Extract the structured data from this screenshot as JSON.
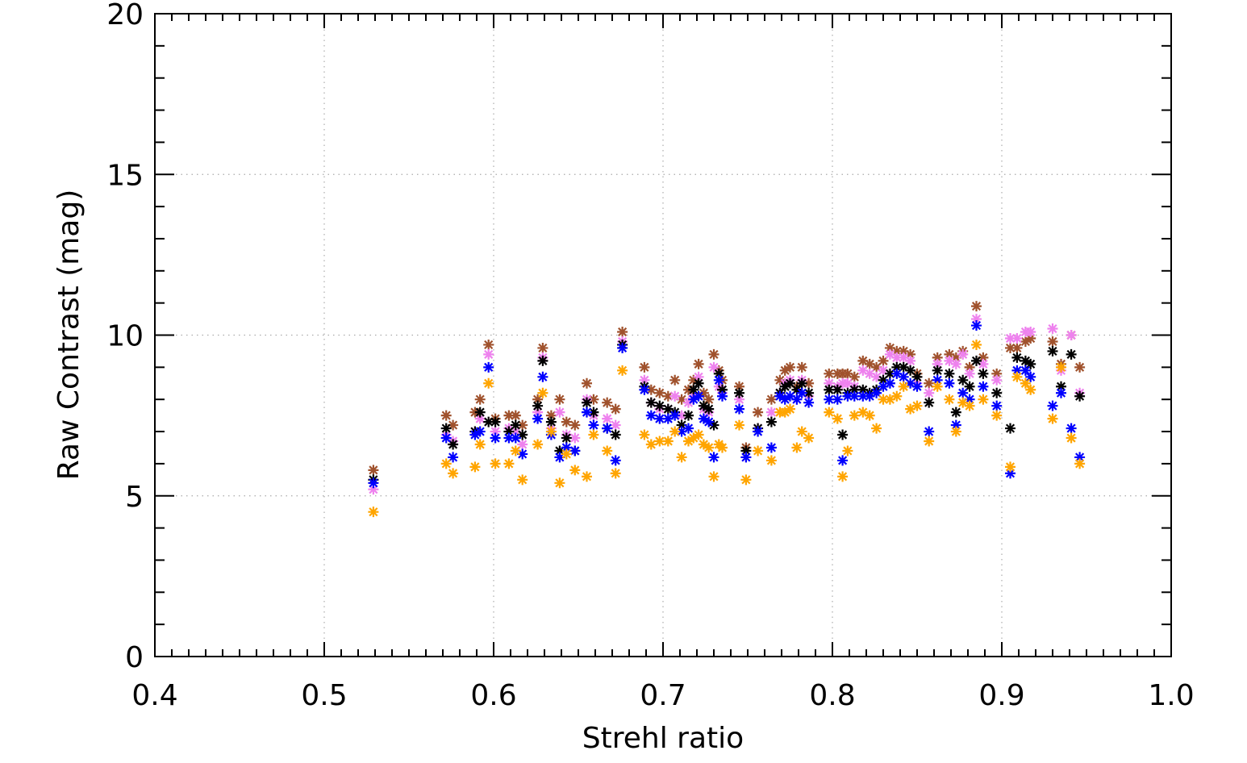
{
  "chart_data": {
    "type": "scatter",
    "title": "",
    "xlabel": "Strehl ratio",
    "ylabel": "Raw Contrast (mag)",
    "xlim": [
      0.4,
      1.0
    ],
    "ylim": [
      0,
      20
    ],
    "xticks": [
      0.4,
      0.5,
      0.6,
      0.7,
      0.8,
      0.9,
      1.0
    ],
    "xtick_labels": [
      "0.4",
      "0.5",
      "0.6",
      "0.7",
      "0.8",
      "0.9",
      "1.0"
    ],
    "yticks": [
      0,
      5,
      10,
      15,
      20
    ],
    "ytick_labels": [
      "0",
      "5",
      "10",
      "15",
      "20"
    ],
    "grid": true,
    "marker": "asterisk",
    "x": [
      0.529,
      0.572,
      0.576,
      0.589,
      0.592,
      0.597,
      0.601,
      0.609,
      0.613,
      0.617,
      0.626,
      0.629,
      0.634,
      0.639,
      0.643,
      0.648,
      0.655,
      0.659,
      0.667,
      0.672,
      0.676,
      0.689,
      0.693,
      0.698,
      0.703,
      0.707,
      0.711,
      0.715,
      0.718,
      0.721,
      0.724,
      0.727,
      0.73,
      0.733,
      0.735,
      0.745,
      0.749,
      0.756,
      0.764,
      0.769,
      0.772,
      0.775,
      0.779,
      0.782,
      0.786,
      0.798,
      0.803,
      0.806,
      0.809,
      0.813,
      0.818,
      0.822,
      0.826,
      0.83,
      0.834,
      0.838,
      0.842,
      0.846,
      0.85,
      0.857,
      0.862,
      0.869,
      0.873,
      0.877,
      0.881,
      0.885,
      0.889,
      0.897,
      0.905,
      0.909,
      0.914,
      0.917,
      0.93,
      0.935,
      0.941,
      0.946
    ],
    "series": [
      {
        "name": "brown",
        "color": "#A0522D",
        "values": [
          5.8,
          7.5,
          7.2,
          7.6,
          8.0,
          9.7,
          7.4,
          7.5,
          7.5,
          7.2,
          8.0,
          9.6,
          7.5,
          8.0,
          7.3,
          7.2,
          8.5,
          8.0,
          7.9,
          7.7,
          10.1,
          9.0,
          8.3,
          8.2,
          8.1,
          8.6,
          8.0,
          8.3,
          8.6,
          9.1,
          8.2,
          8.0,
          9.4,
          8.9,
          8.6,
          8.4,
          6.5,
          7.6,
          8.0,
          8.6,
          8.9,
          9.0,
          8.4,
          9.0,
          8.5,
          8.8,
          8.8,
          8.8,
          8.8,
          8.7,
          9.2,
          9.1,
          9.0,
          9.2,
          9.6,
          9.5,
          9.5,
          9.4,
          8.8,
          8.5,
          9.3,
          9.4,
          9.3,
          9.5,
          9.0,
          10.9,
          9.3,
          8.8,
          9.6,
          9.6,
          9.8,
          9.9,
          9.8,
          9.1,
          10.0,
          9.0
        ]
      },
      {
        "name": "violet",
        "color": "#EE82EE",
        "values": [
          5.2,
          6.9,
          6.7,
          7.0,
          7.4,
          9.4,
          7.0,
          7.1,
          7.0,
          6.6,
          7.6,
          9.3,
          7.1,
          7.6,
          6.9,
          6.8,
          8.0,
          7.5,
          7.4,
          7.2,
          9.8,
          8.6,
          7.9,
          7.7,
          7.7,
          8.1,
          7.5,
          7.9,
          8.1,
          8.7,
          7.7,
          7.6,
          9.0,
          8.4,
          8.2,
          8.0,
          6.2,
          7.1,
          7.6,
          8.2,
          8.5,
          8.6,
          8.0,
          8.6,
          8.1,
          8.5,
          8.4,
          8.5,
          8.5,
          8.4,
          8.9,
          8.8,
          8.7,
          8.9,
          9.4,
          9.3,
          9.3,
          9.2,
          8.5,
          8.2,
          9.1,
          9.2,
          9.1,
          9.4,
          8.8,
          10.5,
          9.1,
          8.6,
          9.9,
          9.9,
          10.1,
          10.1,
          10.2,
          8.9,
          10.0,
          8.2
        ]
      },
      {
        "name": "black",
        "color": "#000000",
        "values": [
          5.5,
          7.1,
          6.6,
          7.0,
          7.6,
          7.3,
          7.3,
          7.0,
          7.2,
          6.9,
          7.8,
          9.2,
          7.3,
          6.4,
          6.8,
          6.4,
          7.9,
          7.6,
          7.1,
          6.9,
          9.7,
          8.4,
          7.9,
          7.8,
          7.7,
          7.6,
          7.2,
          7.5,
          8.3,
          8.5,
          7.8,
          7.7,
          7.2,
          8.8,
          8.3,
          8.2,
          6.4,
          7.1,
          7.3,
          8.2,
          8.4,
          8.5,
          8.3,
          8.5,
          8.2,
          8.3,
          8.3,
          6.9,
          8.2,
          8.3,
          8.3,
          8.2,
          8.3,
          8.6,
          8.8,
          9.0,
          9.0,
          8.9,
          8.7,
          7.9,
          8.9,
          8.8,
          7.6,
          8.6,
          8.4,
          9.2,
          8.8,
          8.2,
          7.1,
          9.3,
          9.2,
          9.1,
          9.5,
          8.4,
          9.4,
          8.1
        ]
      },
      {
        "name": "blue",
        "color": "#0000FF",
        "values": [
          5.4,
          6.8,
          6.2,
          6.9,
          7.0,
          9.0,
          6.8,
          6.8,
          6.8,
          6.3,
          7.4,
          8.7,
          6.9,
          6.2,
          6.5,
          6.4,
          7.6,
          7.2,
          7.1,
          6.1,
          9.6,
          8.3,
          7.5,
          7.4,
          7.4,
          7.5,
          7.0,
          7.1,
          8.0,
          8.1,
          7.4,
          7.3,
          6.2,
          8.6,
          8.1,
          7.7,
          6.2,
          7.0,
          6.5,
          8.1,
          8.0,
          8.1,
          8.0,
          8.2,
          7.9,
          8.0,
          8.0,
          6.1,
          8.1,
          8.1,
          8.1,
          8.1,
          8.2,
          8.4,
          8.5,
          8.8,
          8.7,
          8.5,
          8.4,
          7.0,
          8.6,
          8.5,
          7.2,
          8.2,
          8.0,
          10.3,
          8.4,
          7.8,
          5.7,
          8.9,
          8.9,
          8.7,
          7.8,
          8.2,
          7.1,
          6.2
        ]
      },
      {
        "name": "orange",
        "color": "#FFA500",
        "values": [
          4.5,
          6.0,
          5.7,
          5.9,
          6.6,
          8.5,
          6.0,
          6.0,
          6.4,
          5.5,
          6.6,
          8.2,
          7.0,
          5.4,
          6.3,
          5.8,
          5.6,
          6.9,
          6.4,
          5.7,
          8.9,
          6.9,
          6.6,
          6.7,
          6.7,
          7.0,
          6.2,
          6.7,
          6.8,
          6.9,
          6.6,
          6.5,
          5.6,
          6.6,
          6.5,
          7.2,
          5.5,
          6.4,
          6.1,
          7.6,
          7.6,
          7.7,
          6.5,
          7.0,
          6.8,
          7.6,
          7.4,
          5.6,
          6.4,
          7.5,
          7.6,
          7.5,
          7.1,
          8.0,
          8.0,
          8.1,
          8.4,
          7.7,
          7.8,
          6.7,
          8.4,
          8.0,
          7.0,
          7.9,
          7.8,
          9.7,
          8.0,
          7.5,
          5.9,
          8.7,
          8.5,
          8.3,
          7.4,
          9.0,
          6.8,
          6.0
        ]
      }
    ]
  }
}
